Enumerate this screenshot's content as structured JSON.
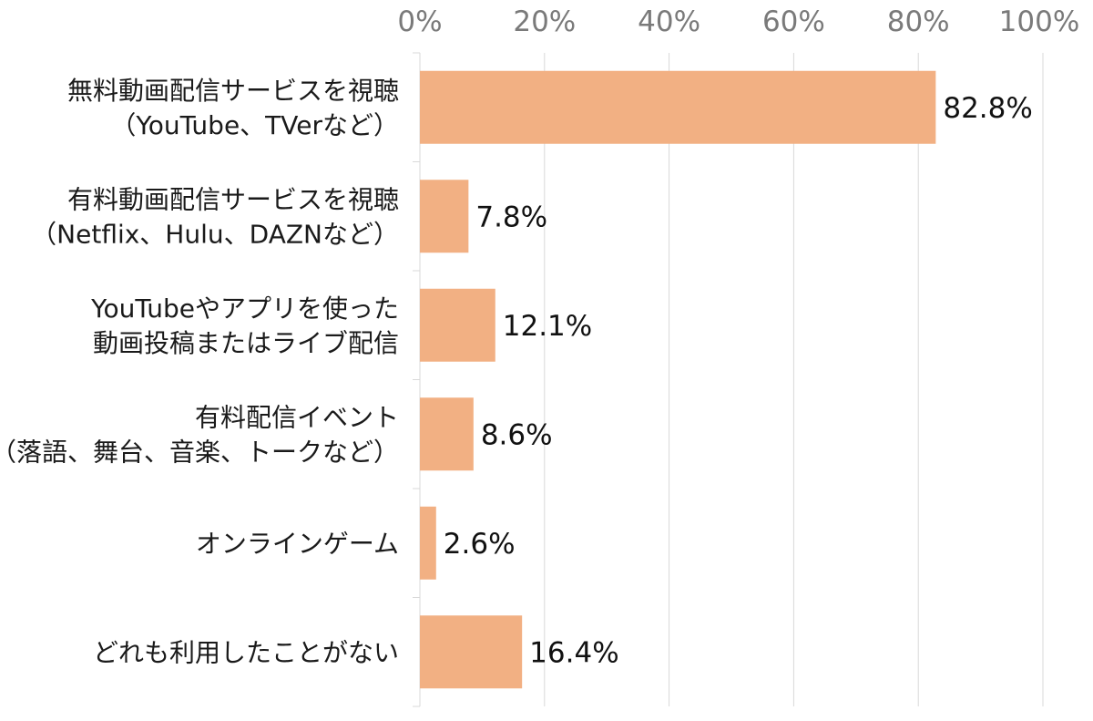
{
  "chart_data": {
    "type": "bar",
    "orientation": "horizontal",
    "categories": [
      [
        "無料動画配信サービスを視聴",
        "（YouTube、TVerなど）"
      ],
      [
        "有料動画配信サービスを視聴",
        "（Netflix、Hulu、DAZNなど）"
      ],
      [
        "YouTubeやアプリを使った",
        "動画投稿またはライブ配信"
      ],
      [
        "有料配信イベント",
        "（落語、舞台、音楽、トークなど）"
      ],
      [
        "オンラインゲーム"
      ],
      [
        "どれも利用したことがない"
      ]
    ],
    "values": [
      82.8,
      7.8,
      12.1,
      8.6,
      2.6,
      16.4
    ],
    "data_labels": [
      "82.8%",
      "7.8%",
      "12.1%",
      "8.6%",
      "2.6%",
      "16.4%"
    ],
    "x_ticks": [
      "0%",
      "20%",
      "40%",
      "60%",
      "80%",
      "100%"
    ],
    "xlim": [
      0,
      100
    ],
    "x_axis_position": "top",
    "grid": true,
    "legend": "none",
    "bar_color": "#f2b083",
    "grid_color": "#d9d9d9",
    "tick_label_color": "#7a7a7a"
  }
}
